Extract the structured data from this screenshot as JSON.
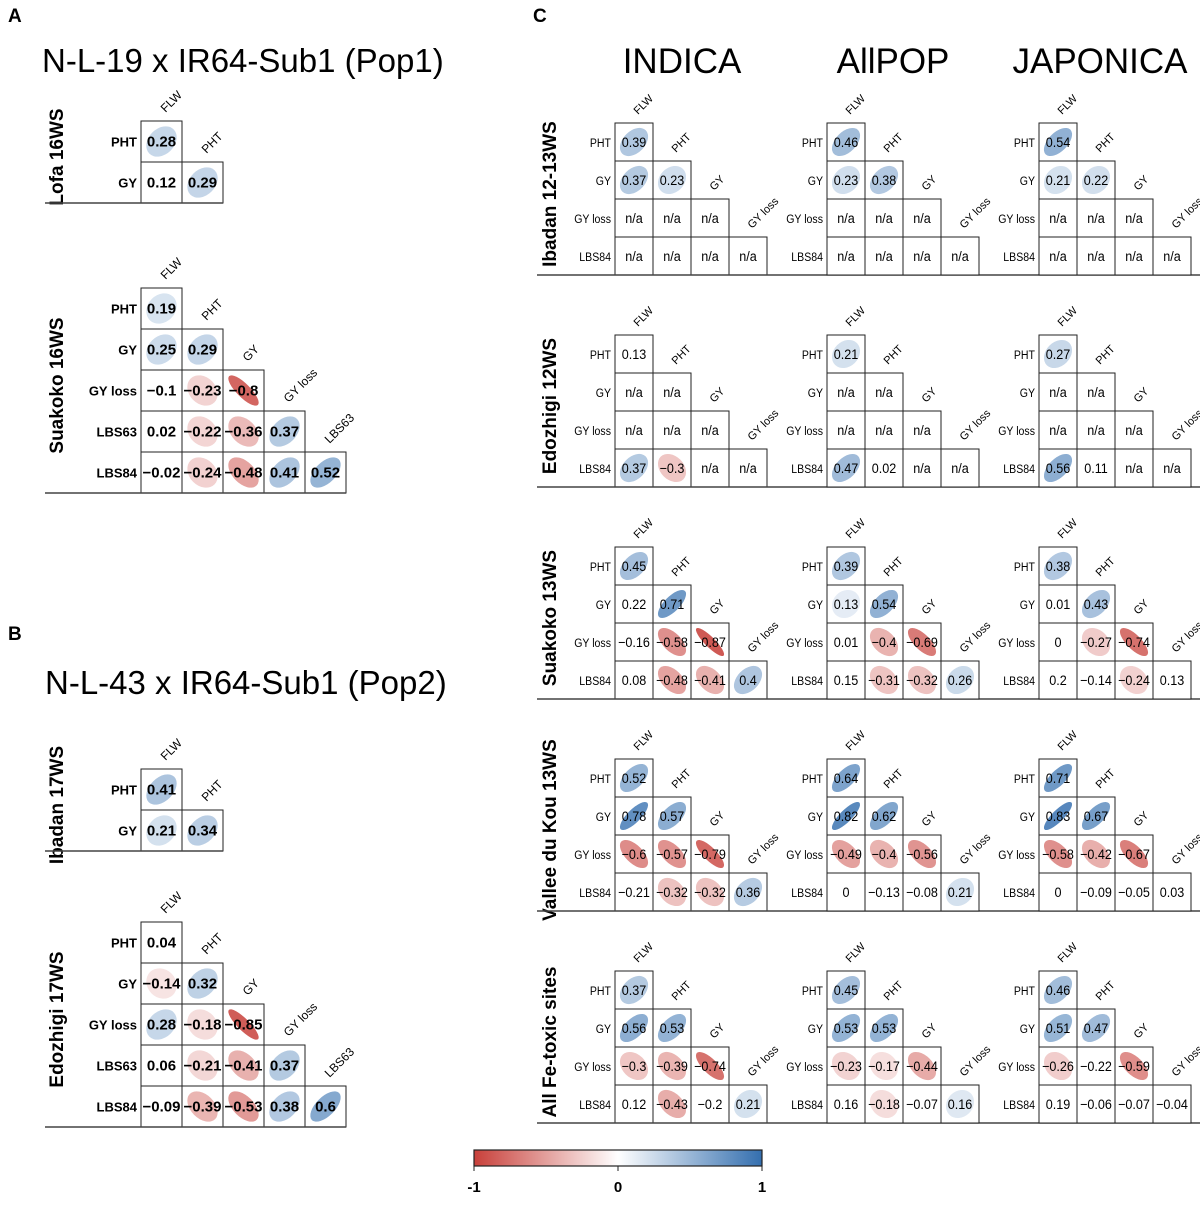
{
  "panels": {
    "A": {
      "letter": "A",
      "title": "N-L-19 x IR64-Sub1 (Pop1)"
    },
    "B": {
      "letter": "B",
      "title": "N-L-43 x IR64-Sub1 (Pop2)"
    },
    "C": {
      "letter": "C",
      "columns": [
        "INDICA",
        "AllPOP",
        "JAPONICA"
      ]
    }
  },
  "colors": {
    "negative": "#C8403A",
    "zero": "#FFFFFF",
    "positive": "#346FAF"
  },
  "chart_data": [
    {
      "type": "heatmap",
      "panel": "A",
      "site": "Lofa 16WS",
      "variables": [
        "FLW",
        "PHT",
        "GY"
      ],
      "rows": [
        [
          [
            "0.28",
            1
          ]
        ],
        [
          [
            "0.12",
            0
          ],
          [
            "0.29",
            1
          ]
        ]
      ]
    },
    {
      "type": "heatmap",
      "panel": "A",
      "site": "Suakoko 16WS",
      "variables": [
        "FLW",
        "PHT",
        "GY",
        "GY loss",
        "LBS63",
        "LBS84"
      ],
      "rows": [
        [
          [
            "0.19",
            1
          ]
        ],
        [
          [
            "0.25",
            1
          ],
          [
            "0.29",
            1
          ]
        ],
        [
          [
            "−0.1",
            0
          ],
          [
            "−0.23",
            1
          ],
          [
            "−0.8",
            1
          ]
        ],
        [
          [
            "0.02",
            0
          ],
          [
            "−0.22",
            1
          ],
          [
            "−0.36",
            1
          ],
          [
            "0.37",
            1
          ]
        ],
        [
          [
            "−0.02",
            0
          ],
          [
            "−0.24",
            1
          ],
          [
            "−0.48",
            1
          ],
          [
            "0.41",
            1
          ],
          [
            "0.52",
            1
          ]
        ]
      ]
    },
    {
      "type": "heatmap",
      "panel": "B",
      "site": "Ibadan 17WS",
      "variables": [
        "FLW",
        "PHT",
        "GY"
      ],
      "rows": [
        [
          [
            "0.41",
            1
          ]
        ],
        [
          [
            "0.21",
            1
          ],
          [
            "0.34",
            1
          ]
        ]
      ]
    },
    {
      "type": "heatmap",
      "panel": "B",
      "site": "Edozhigi 17WS",
      "variables": [
        "FLW",
        "PHT",
        "GY",
        "GY loss",
        "LBS63",
        "LBS84"
      ],
      "rows": [
        [
          [
            "0.04",
            0
          ]
        ],
        [
          [
            "−0.14",
            1
          ],
          [
            "0.32",
            1
          ]
        ],
        [
          [
            "0.28",
            1
          ],
          [
            "−0.18",
            1
          ],
          [
            "−0.85",
            1
          ]
        ],
        [
          [
            "0.06",
            0
          ],
          [
            "−0.21",
            1
          ],
          [
            "−0.41",
            1
          ],
          [
            "0.37",
            1
          ]
        ],
        [
          [
            "−0.09",
            0
          ],
          [
            "−0.39",
            1
          ],
          [
            "−0.53",
            1
          ],
          [
            "0.38",
            1
          ],
          [
            "0.6",
            1
          ]
        ]
      ]
    },
    {
      "type": "heatmap",
      "panel": "C",
      "site": "Ibadan 12-13WS",
      "group": "INDICA",
      "variables": [
        "FLW",
        "PHT",
        "GY",
        "GY loss",
        "LBS84"
      ],
      "rows": [
        [
          [
            "0.39",
            1
          ]
        ],
        [
          [
            "0.37",
            1
          ],
          [
            "0.23",
            1
          ]
        ],
        [
          [
            "n/a",
            0
          ],
          [
            "n/a",
            0
          ],
          [
            "n/a",
            0
          ]
        ],
        [
          [
            "n/a",
            0
          ],
          [
            "n/a",
            0
          ],
          [
            "n/a",
            0
          ],
          [
            "n/a",
            0
          ]
        ]
      ]
    },
    {
      "type": "heatmap",
      "panel": "C",
      "site": "Ibadan 12-13WS",
      "group": "AllPOP",
      "variables": [
        "FLW",
        "PHT",
        "GY",
        "GY loss",
        "LBS84"
      ],
      "rows": [
        [
          [
            "0.46",
            1
          ]
        ],
        [
          [
            "0.23",
            1
          ],
          [
            "0.38",
            1
          ]
        ],
        [
          [
            "n/a",
            0
          ],
          [
            "n/a",
            0
          ],
          [
            "n/a",
            0
          ]
        ],
        [
          [
            "n/a",
            0
          ],
          [
            "n/a",
            0
          ],
          [
            "n/a",
            0
          ],
          [
            "n/a",
            0
          ]
        ]
      ]
    },
    {
      "type": "heatmap",
      "panel": "C",
      "site": "Ibadan 12-13WS",
      "group": "JAPONICA",
      "variables": [
        "FLW",
        "PHT",
        "GY",
        "GY loss",
        "LBS84"
      ],
      "rows": [
        [
          [
            "0.54",
            1
          ]
        ],
        [
          [
            "0.21",
            1
          ],
          [
            "0.22",
            1
          ]
        ],
        [
          [
            "n/a",
            0
          ],
          [
            "n/a",
            0
          ],
          [
            "n/a",
            0
          ]
        ],
        [
          [
            "n/a",
            0
          ],
          [
            "n/a",
            0
          ],
          [
            "n/a",
            0
          ],
          [
            "n/a",
            0
          ]
        ]
      ]
    },
    {
      "type": "heatmap",
      "panel": "C",
      "site": "Edozhigi 12WS",
      "group": "INDICA",
      "variables": [
        "FLW",
        "PHT",
        "GY",
        "GY loss",
        "LBS84"
      ],
      "rows": [
        [
          [
            "0.13",
            0
          ]
        ],
        [
          [
            "n/a",
            0
          ],
          [
            "n/a",
            0
          ]
        ],
        [
          [
            "n/a",
            0
          ],
          [
            "n/a",
            0
          ],
          [
            "n/a",
            0
          ]
        ],
        [
          [
            "0.37",
            1
          ],
          [
            "−0.3",
            1
          ],
          [
            "n/a",
            0
          ],
          [
            "n/a",
            0
          ]
        ]
      ]
    },
    {
      "type": "heatmap",
      "panel": "C",
      "site": "Edozhigi 12WS",
      "group": "AllPOP",
      "variables": [
        "FLW",
        "PHT",
        "GY",
        "GY loss",
        "LBS84"
      ],
      "rows": [
        [
          [
            "0.21",
            1
          ]
        ],
        [
          [
            "n/a",
            0
          ],
          [
            "n/a",
            0
          ]
        ],
        [
          [
            "n/a",
            0
          ],
          [
            "n/a",
            0
          ],
          [
            "n/a",
            0
          ]
        ],
        [
          [
            "0.47",
            1
          ],
          [
            "0.02",
            0
          ],
          [
            "n/a",
            0
          ],
          [
            "n/a",
            0
          ]
        ]
      ]
    },
    {
      "type": "heatmap",
      "panel": "C",
      "site": "Edozhigi 12WS",
      "group": "JAPONICA",
      "variables": [
        "FLW",
        "PHT",
        "GY",
        "GY loss",
        "LBS84"
      ],
      "rows": [
        [
          [
            "0.27",
            1
          ]
        ],
        [
          [
            "n/a",
            0
          ],
          [
            "n/a",
            0
          ]
        ],
        [
          [
            "n/a",
            0
          ],
          [
            "n/a",
            0
          ],
          [
            "n/a",
            0
          ]
        ],
        [
          [
            "0.56",
            1
          ],
          [
            "0.11",
            0
          ],
          [
            "n/a",
            0
          ],
          [
            "n/a",
            0
          ]
        ]
      ]
    },
    {
      "type": "heatmap",
      "panel": "C",
      "site": "Suakoko 13WS",
      "group": "INDICA",
      "variables": [
        "FLW",
        "PHT",
        "GY",
        "GY loss",
        "LBS84"
      ],
      "rows": [
        [
          [
            "0.45",
            1
          ]
        ],
        [
          [
            "0.22",
            0
          ],
          [
            "0.71",
            1
          ]
        ],
        [
          [
            "−0.16",
            0
          ],
          [
            "−0.58",
            1
          ],
          [
            "−0.87",
            1
          ]
        ],
        [
          [
            "0.08",
            0
          ],
          [
            "−0.48",
            1
          ],
          [
            "−0.41",
            1
          ],
          [
            "0.4",
            1
          ]
        ]
      ]
    },
    {
      "type": "heatmap",
      "panel": "C",
      "site": "Suakoko 13WS",
      "group": "AllPOP",
      "variables": [
        "FLW",
        "PHT",
        "GY",
        "GY loss",
        "LBS84"
      ],
      "rows": [
        [
          [
            "0.39",
            1
          ]
        ],
        [
          [
            "0.13",
            1
          ],
          [
            "0.54",
            1
          ]
        ],
        [
          [
            "0.01",
            0
          ],
          [
            "−0.4",
            1
          ],
          [
            "−0.69",
            1
          ]
        ],
        [
          [
            "0.15",
            0
          ],
          [
            "−0.31",
            1
          ],
          [
            "−0.32",
            1
          ],
          [
            "0.26",
            1
          ]
        ]
      ]
    },
    {
      "type": "heatmap",
      "panel": "C",
      "site": "Suakoko 13WS",
      "group": "JAPONICA",
      "variables": [
        "FLW",
        "PHT",
        "GY",
        "GY loss",
        "LBS84"
      ],
      "rows": [
        [
          [
            "0.38",
            1
          ]
        ],
        [
          [
            "0.01",
            0
          ],
          [
            "0.43",
            1
          ]
        ],
        [
          [
            "0",
            0
          ],
          [
            "−0.27",
            1
          ],
          [
            "−0.74",
            1
          ]
        ],
        [
          [
            "0.2",
            0
          ],
          [
            "−0.14",
            0
          ],
          [
            "−0.24",
            1
          ],
          [
            "0.13",
            0
          ]
        ]
      ]
    },
    {
      "type": "heatmap",
      "panel": "C",
      "site": "Vallee du Kou 13WS",
      "group": "INDICA",
      "variables": [
        "FLW",
        "PHT",
        "GY",
        "GY loss",
        "LBS84"
      ],
      "rows": [
        [
          [
            "0.52",
            1
          ]
        ],
        [
          [
            "0.78",
            1
          ],
          [
            "0.57",
            1
          ]
        ],
        [
          [
            "−0.6",
            1
          ],
          [
            "−0.57",
            1
          ],
          [
            "−0.79",
            1
          ]
        ],
        [
          [
            "−0.21",
            0
          ],
          [
            "−0.32",
            1
          ],
          [
            "−0.32",
            1
          ],
          [
            "0.36",
            1
          ]
        ]
      ]
    },
    {
      "type": "heatmap",
      "panel": "C",
      "site": "Vallee du Kou 13WS",
      "group": "AllPOP",
      "variables": [
        "FLW",
        "PHT",
        "GY",
        "GY loss",
        "LBS84"
      ],
      "rows": [
        [
          [
            "0.64",
            1
          ]
        ],
        [
          [
            "0.82",
            1
          ],
          [
            "0.62",
            1
          ]
        ],
        [
          [
            "−0.49",
            1
          ],
          [
            "−0.4",
            1
          ],
          [
            "−0.56",
            1
          ]
        ],
        [
          [
            "0",
            0
          ],
          [
            "−0.13",
            0
          ],
          [
            "−0.08",
            0
          ],
          [
            "0.21",
            1
          ]
        ]
      ]
    },
    {
      "type": "heatmap",
      "panel": "C",
      "site": "Vallee du Kou 13WS",
      "group": "JAPONICA",
      "variables": [
        "FLW",
        "PHT",
        "GY",
        "GY loss",
        "LBS84"
      ],
      "rows": [
        [
          [
            "0.71",
            1
          ]
        ],
        [
          [
            "0.83",
            1
          ],
          [
            "0.67",
            1
          ]
        ],
        [
          [
            "−0.58",
            1
          ],
          [
            "−0.42",
            1
          ],
          [
            "−0.67",
            1
          ]
        ],
        [
          [
            "0",
            0
          ],
          [
            "−0.09",
            0
          ],
          [
            "−0.05",
            0
          ],
          [
            "0.03",
            0
          ]
        ]
      ]
    },
    {
      "type": "heatmap",
      "panel": "C",
      "site": "All Fe-toxic sites",
      "group": "INDICA",
      "variables": [
        "FLW",
        "PHT",
        "GY",
        "GY loss",
        "LBS84"
      ],
      "rows": [
        [
          [
            "0.37",
            1
          ]
        ],
        [
          [
            "0.56",
            1
          ],
          [
            "0.53",
            1
          ]
        ],
        [
          [
            "−0.3",
            1
          ],
          [
            "−0.39",
            1
          ],
          [
            "−0.74",
            1
          ]
        ],
        [
          [
            "0.12",
            0
          ],
          [
            "−0.43",
            1
          ],
          [
            "−0.2",
            0
          ],
          [
            "0.21",
            1
          ]
        ]
      ]
    },
    {
      "type": "heatmap",
      "panel": "C",
      "site": "All Fe-toxic sites",
      "group": "AllPOP",
      "variables": [
        "FLW",
        "PHT",
        "GY",
        "GY loss",
        "LBS84"
      ],
      "rows": [
        [
          [
            "0.45",
            1
          ]
        ],
        [
          [
            "0.53",
            1
          ],
          [
            "0.53",
            1
          ]
        ],
        [
          [
            "−0.23",
            1
          ],
          [
            "−0.17",
            1
          ],
          [
            "−0.44",
            1
          ]
        ],
        [
          [
            "0.16",
            0
          ],
          [
            "−0.18",
            1
          ],
          [
            "−0.07",
            0
          ],
          [
            "0.16",
            1
          ]
        ]
      ]
    },
    {
      "type": "heatmap",
      "panel": "C",
      "site": "All Fe-toxic sites",
      "group": "JAPONICA",
      "variables": [
        "FLW",
        "PHT",
        "GY",
        "GY loss",
        "LBS84"
      ],
      "rows": [
        [
          [
            "0.46",
            1
          ]
        ],
        [
          [
            "0.51",
            1
          ],
          [
            "0.47",
            1
          ]
        ],
        [
          [
            "−0.26",
            1
          ],
          [
            "−0.22",
            0
          ],
          [
            "−0.59",
            1
          ]
        ],
        [
          [
            "0.19",
            0
          ],
          [
            "−0.06",
            0
          ],
          [
            "−0.07",
            0
          ],
          [
            "−0.04",
            0
          ]
        ]
      ]
    }
  ],
  "colorbar": {
    "min": -1,
    "max": 1,
    "ticks": [
      "-1",
      "0",
      "1"
    ]
  }
}
